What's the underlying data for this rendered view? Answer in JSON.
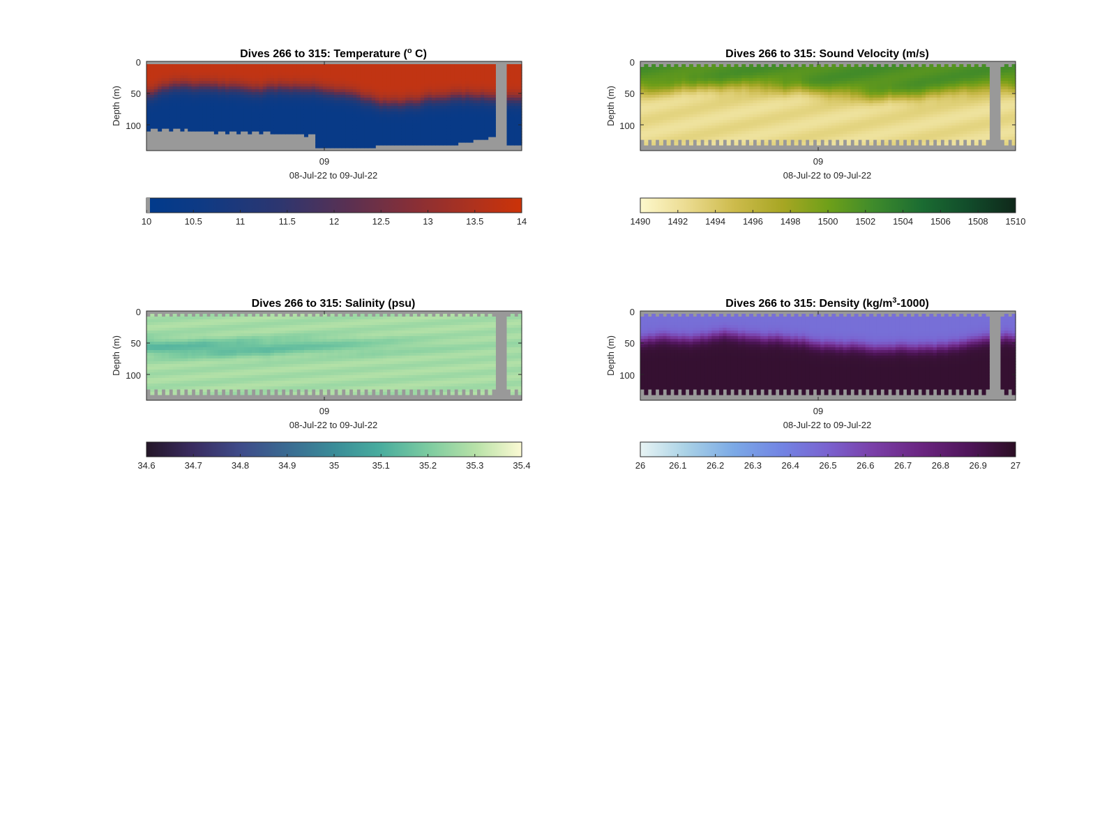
{
  "figure": {
    "panels": [
      {
        "id": "temperature",
        "title_main": "Dives 266 to 315: Temperature (",
        "title_sup": "o",
        "title_tail": " C)",
        "ylabel": "Depth (m)",
        "xtick_label": "09",
        "xlabel": "08-Jul-22 to 09-Jul-22",
        "ytick_labels": [
          "0",
          "50",
          "100"
        ],
        "colorbar_ticks": [
          "10",
          "10.5",
          "11",
          "11.5",
          "12",
          "12.5",
          "13",
          "13.5",
          "14"
        ]
      },
      {
        "id": "sound-velocity",
        "title_main": "Dives 266 to 315: Sound Velocity (m/s)",
        "title_sup": "",
        "title_tail": "",
        "ylabel": "Depth (m)",
        "xtick_label": "09",
        "xlabel": "08-Jul-22 to 09-Jul-22",
        "ytick_labels": [
          "0",
          "50",
          "100"
        ],
        "colorbar_ticks": [
          "1490",
          "1492",
          "1494",
          "1496",
          "1498",
          "1500",
          "1502",
          "1504",
          "1506",
          "1508",
          "1510"
        ]
      },
      {
        "id": "salinity",
        "title_main": "Dives 266 to 315: Salinity (psu)",
        "title_sup": "",
        "title_tail": "",
        "ylabel": "Depth (m)",
        "xtick_label": "09",
        "xlabel": "08-Jul-22 to 09-Jul-22",
        "ytick_labels": [
          "0",
          "50",
          "100"
        ],
        "colorbar_ticks": [
          "34.6",
          "34.7",
          "34.8",
          "34.9",
          "35",
          "35.1",
          "35.2",
          "35.3",
          "35.4"
        ]
      },
      {
        "id": "density",
        "title_main": "Dives 266 to 315: Density (kg/m",
        "title_sup": "3",
        "title_tail": "-1000)",
        "ylabel": "Depth (m)",
        "xtick_label": "09",
        "xlabel": "08-Jul-22 to 09-Jul-22",
        "ytick_labels": [
          "0",
          "50",
          "100"
        ],
        "colorbar_ticks": [
          "26",
          "26.1",
          "26.2",
          "26.3",
          "26.4",
          "26.5",
          "26.6",
          "26.7",
          "26.8",
          "26.9",
          "27"
        ]
      }
    ]
  },
  "chart_data": [
    {
      "type": "heatmap",
      "title": "Dives 266 to 315: Temperature (o C)",
      "ylabel": "Depth (m)",
      "xlabel": "08-Jul-22 to 09-Jul-22",
      "x_ticks": [
        "09"
      ],
      "y_ticks": [
        0,
        50,
        100
      ],
      "y_reversed": true,
      "ylim": [
        0,
        140
      ],
      "colorbar": {
        "min": 10,
        "max": 14,
        "ticks": [
          10,
          10.5,
          11,
          11.5,
          12,
          12.5,
          13,
          13.5,
          14
        ],
        "colors": [
          "#003a8c",
          "#1d3a7a",
          "#3a3566",
          "#5e3050",
          "#853039",
          "#a33325",
          "#c03414",
          "#cc3308"
        ]
      },
      "missing_color": "#999999",
      "profile_summary": {
        "surface_value": 13.5,
        "mixed_layer_bottom_m": [
          55,
          45
        ],
        "deep_value": 10.2,
        "max_depth_m": [
          105,
          135
        ]
      }
    },
    {
      "type": "heatmap",
      "title": "Dives 266 to 315: Sound Velocity (m/s)",
      "ylabel": "Depth (m)",
      "xlabel": "08-Jul-22 to 09-Jul-22",
      "x_ticks": [
        "09"
      ],
      "y_ticks": [
        0,
        50,
        100
      ],
      "y_reversed": true,
      "ylim": [
        0,
        140
      ],
      "colorbar": {
        "min": 1490,
        "max": 1510,
        "ticks": [
          1490,
          1492,
          1494,
          1496,
          1498,
          1500,
          1502,
          1504,
          1506,
          1508,
          1510
        ],
        "colors": [
          "#fbf6c8",
          "#e8d98a",
          "#c9b94a",
          "#a0a624",
          "#6c9d18",
          "#3f8a2a",
          "#1c6d32",
          "#0f4d2a",
          "#0f2a18"
        ]
      },
      "missing_color": "#999999",
      "profile_summary": {
        "surface_value": 1502,
        "deep_value": 1492,
        "max_depth_m": 130
      }
    },
    {
      "type": "heatmap",
      "title": "Dives 266 to 315: Salinity (psu)",
      "ylabel": "Depth (m)",
      "xlabel": "08-Jul-22 to 09-Jul-22",
      "x_ticks": [
        "09"
      ],
      "y_ticks": [
        0,
        50,
        100
      ],
      "y_reversed": true,
      "ylim": [
        0,
        140
      ],
      "colorbar": {
        "min": 34.6,
        "max": 35.4,
        "ticks": [
          34.6,
          34.7,
          34.8,
          34.9,
          35,
          35.1,
          35.2,
          35.3,
          35.4
        ],
        "colors": [
          "#26182a",
          "#3a3064",
          "#3f4e8a",
          "#3a6e92",
          "#3a8d98",
          "#48ad9e",
          "#7dcca0",
          "#b9e3a8",
          "#fbf9d2"
        ]
      },
      "missing_color": "#999999",
      "profile_summary": {
        "surface_value": 35.22,
        "mid_value": 35.15,
        "deep_value": 35.28,
        "max_depth_m": 130
      }
    },
    {
      "type": "heatmap",
      "title": "Dives 266 to 315: Density (kg/m3-1000)",
      "ylabel": "Depth (m)",
      "xlabel": "08-Jul-22 to 09-Jul-22",
      "x_ticks": [
        "09"
      ],
      "y_ticks": [
        0,
        50,
        100
      ],
      "y_reversed": true,
      "ylim": [
        0,
        140
      ],
      "colorbar": {
        "min": 26,
        "max": 27,
        "ticks": [
          26,
          26.1,
          26.2,
          26.3,
          26.4,
          26.5,
          26.6,
          26.7,
          26.8,
          26.9,
          27
        ],
        "colors": [
          "#e6f3f3",
          "#a7d0e6",
          "#7aa9e6",
          "#7283e3",
          "#7a62cf",
          "#7a3fa8",
          "#6a2580",
          "#4e1558",
          "#2d0f25"
        ]
      },
      "missing_color": "#999999",
      "profile_summary": {
        "surface_value": 26.45,
        "deep_value": 26.98,
        "max_depth_m": 130
      }
    }
  ]
}
